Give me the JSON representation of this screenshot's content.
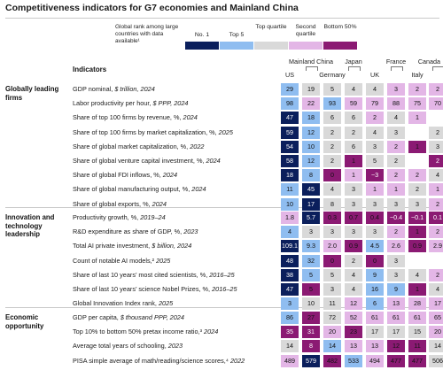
{
  "title": "Competitiveness indicators for G7 economies and Mainland China",
  "legend": {
    "note": "Global rank among large countries with data available¹",
    "items": [
      {
        "label": "No. 1",
        "color": "#0b1f5c"
      },
      {
        "label": "Top 5",
        "color": "#8fbdf0"
      },
      {
        "label": "Top quartile",
        "color": "#d9d9d9"
      },
      {
        "label": "Second quartile",
        "color": "#e3b6e6"
      },
      {
        "label": "Bottom 50%",
        "color": "#8b1a73"
      }
    ]
  },
  "chart_data": {
    "type": "heatmap",
    "indicators_header": "Indicators",
    "countries": [
      "US",
      "Mainland China",
      "Germany",
      "Japan",
      "UK",
      "France",
      "Italy",
      "Canada"
    ],
    "country_labels": {
      "top": [
        "Mainland China",
        "Japan",
        "France",
        "Canada"
      ],
      "bottom": [
        "US",
        "Germany",
        "UK",
        "Italy"
      ]
    },
    "groups": [
      {
        "label": "Globally leading firms",
        "rows": [
          {
            "name": "GDP nominal, ",
            "unit": "$ trillion, 2024",
            "values": [
              "29",
              "19",
              "5",
              "4",
              "4",
              "3",
              "2",
              "2"
            ],
            "levels": [
              1,
              2,
              2,
              2,
              2,
              3,
              3,
              3
            ]
          },
          {
            "name": "Labor productivity per hour, ",
            "unit": "$ PPP, 2024",
            "values": [
              "98",
              "22",
              "93",
              "59",
              "79",
              "88",
              "75",
              "70"
            ],
            "levels": [
              1,
              3,
              1,
              3,
              3,
              3,
              3,
              3
            ]
          },
          {
            "name": "Share of top 100 firms by revenue, %, ",
            "unit": "2024",
            "values": [
              "47",
              "18",
              "6",
              "6",
              "2",
              "4",
              "1",
              ""
            ],
            "levels": [
              0,
              1,
              2,
              2,
              3,
              2,
              3,
              -1
            ]
          },
          {
            "name": "Share of top 100 firms by market capitalization, %, ",
            "unit": "2025",
            "values": [
              "59",
              "12",
              "2",
              "2",
              "4",
              "3",
              "",
              "2"
            ],
            "levels": [
              0,
              1,
              2,
              2,
              2,
              2,
              -1,
              2
            ]
          },
          {
            "name": "Share of global market capitalization, %, ",
            "unit": "2022",
            "values": [
              "54",
              "10",
              "2",
              "6",
              "3",
              "2",
              "1",
              "3"
            ],
            "levels": [
              0,
              1,
              2,
              2,
              2,
              3,
              4,
              2
            ]
          },
          {
            "name": "Share of global venture capital investment, %, ",
            "unit": "2024",
            "values": [
              "58",
              "12",
              "2",
              "1",
              "5",
              "2",
              "",
              "2"
            ],
            "levels": [
              0,
              1,
              2,
              4,
              2,
              2,
              -1,
              5
            ]
          },
          {
            "name": "Share of global FDI inflows, %, ",
            "unit": "2024",
            "values": [
              "18",
              "8",
              "0",
              "1",
              "−3",
              "2",
              "2",
              "4"
            ],
            "levels": [
              0,
              1,
              4,
              3,
              5,
              3,
              3,
              2
            ]
          },
          {
            "name": "Share of global manufacturing output, %, ",
            "unit": "2024",
            "values": [
              "11",
              "45",
              "4",
              "3",
              "1",
              "1",
              "2",
              "1"
            ],
            "levels": [
              1,
              0,
              2,
              2,
              3,
              3,
              2,
              3
            ]
          },
          {
            "name": "Share of global exports, %, ",
            "unit": "2024",
            "values": [
              "10",
              "17",
              "8",
              "3",
              "3",
              "3",
              "3",
              "2"
            ],
            "levels": [
              1,
              0,
              2,
              2,
              2,
              2,
              2,
              3
            ]
          }
        ]
      },
      {
        "label": "Innovation and technology leadership",
        "rows": [
          {
            "name": "Productivity growth, %, ",
            "unit": "2019–24",
            "values": [
              "1.8",
              "5.7",
              "0.3",
              "0.7",
              "0.4",
              "−0.4",
              "−0.1",
              "0.1"
            ],
            "levels": [
              3,
              0,
              4,
              4,
              4,
              5,
              5,
              5
            ]
          },
          {
            "name": "R&D expenditure as share of GDP, %, ",
            "unit": "2023",
            "values": [
              "4",
              "3",
              "3",
              "3",
              "3",
              "2",
              "1",
              "2"
            ],
            "levels": [
              1,
              2,
              2,
              2,
              2,
              3,
              4,
              3
            ]
          },
          {
            "name": "Total AI private investment, ",
            "unit": "$ billion, 2024",
            "values": [
              "109.1",
              "9.3",
              "2.0",
              "0.9",
              "4.5",
              "2.6",
              "0.9",
              "2.9"
            ],
            "levels": [
              0,
              1,
              3,
              4,
              1,
              3,
              4,
              3
            ]
          },
          {
            "name": "Count of notable AI models,² ",
            "unit": "2025",
            "values": [
              "48",
              "32",
              "0",
              "2",
              "0",
              "3",
              "",
              ""
            ],
            "levels": [
              0,
              1,
              4,
              2,
              4,
              2,
              -1,
              -1
            ]
          },
          {
            "name": "Share of last 10 years’ most cited scientists, %, ",
            "unit": "2016–25",
            "values": [
              "38",
              "5",
              "5",
              "4",
              "9",
              "3",
              "4",
              "2"
            ],
            "levels": [
              0,
              1,
              2,
              2,
              1,
              2,
              2,
              3
            ]
          },
          {
            "name": "Share of last 10 years’ science Nobel Prizes, %, ",
            "unit": "2016–25",
            "values": [
              "47",
              "5",
              "3",
              "4",
              "16",
              "9",
              "1",
              "4"
            ],
            "levels": [
              0,
              4,
              2,
              2,
              1,
              1,
              4,
              2
            ]
          },
          {
            "name": "Global Innovation Index rank, ",
            "unit": "2025",
            "values": [
              "3",
              "10",
              "11",
              "12",
              "6",
              "13",
              "28",
              "17"
            ],
            "levels": [
              1,
              2,
              2,
              3,
              1,
              3,
              3,
              3
            ]
          }
        ]
      },
      {
        "label": "Economic opportunity",
        "rows": [
          {
            "name": "GDP per capita, ",
            "unit": "$ thousand PPP, 2024",
            "values": [
              "86",
              "27",
              "72",
              "52",
              "61",
              "61",
              "61",
              "65"
            ],
            "levels": [
              1,
              4,
              2,
              3,
              3,
              3,
              3,
              3
            ]
          },
          {
            "name": "Top 10% to bottom 50% pretax income ratio,³ ",
            "unit": "2024",
            "values": [
              "35",
              "31",
              "20",
              "23",
              "17",
              "17",
              "15",
              "20"
            ],
            "levels": [
              5,
              5,
              3,
              4,
              2,
              2,
              2,
              3
            ]
          },
          {
            "name": "Average total years of schooling, ",
            "unit": "2023",
            "values": [
              "14",
              "8",
              "14",
              "13",
              "13",
              "12",
              "11",
              "14"
            ],
            "levels": [
              2,
              5,
              1,
              3,
              3,
              4,
              4,
              2
            ]
          },
          {
            "name": "PISA simple average of math/reading/science scores,⁴ ",
            "unit": "2022",
            "values": [
              "489",
              "579",
              "482",
              "533",
              "494",
              "477",
              "477",
              "506"
            ],
            "levels": [
              3,
              0,
              4,
              1,
              3,
              4,
              4,
              2
            ]
          }
        ]
      }
    ]
  }
}
